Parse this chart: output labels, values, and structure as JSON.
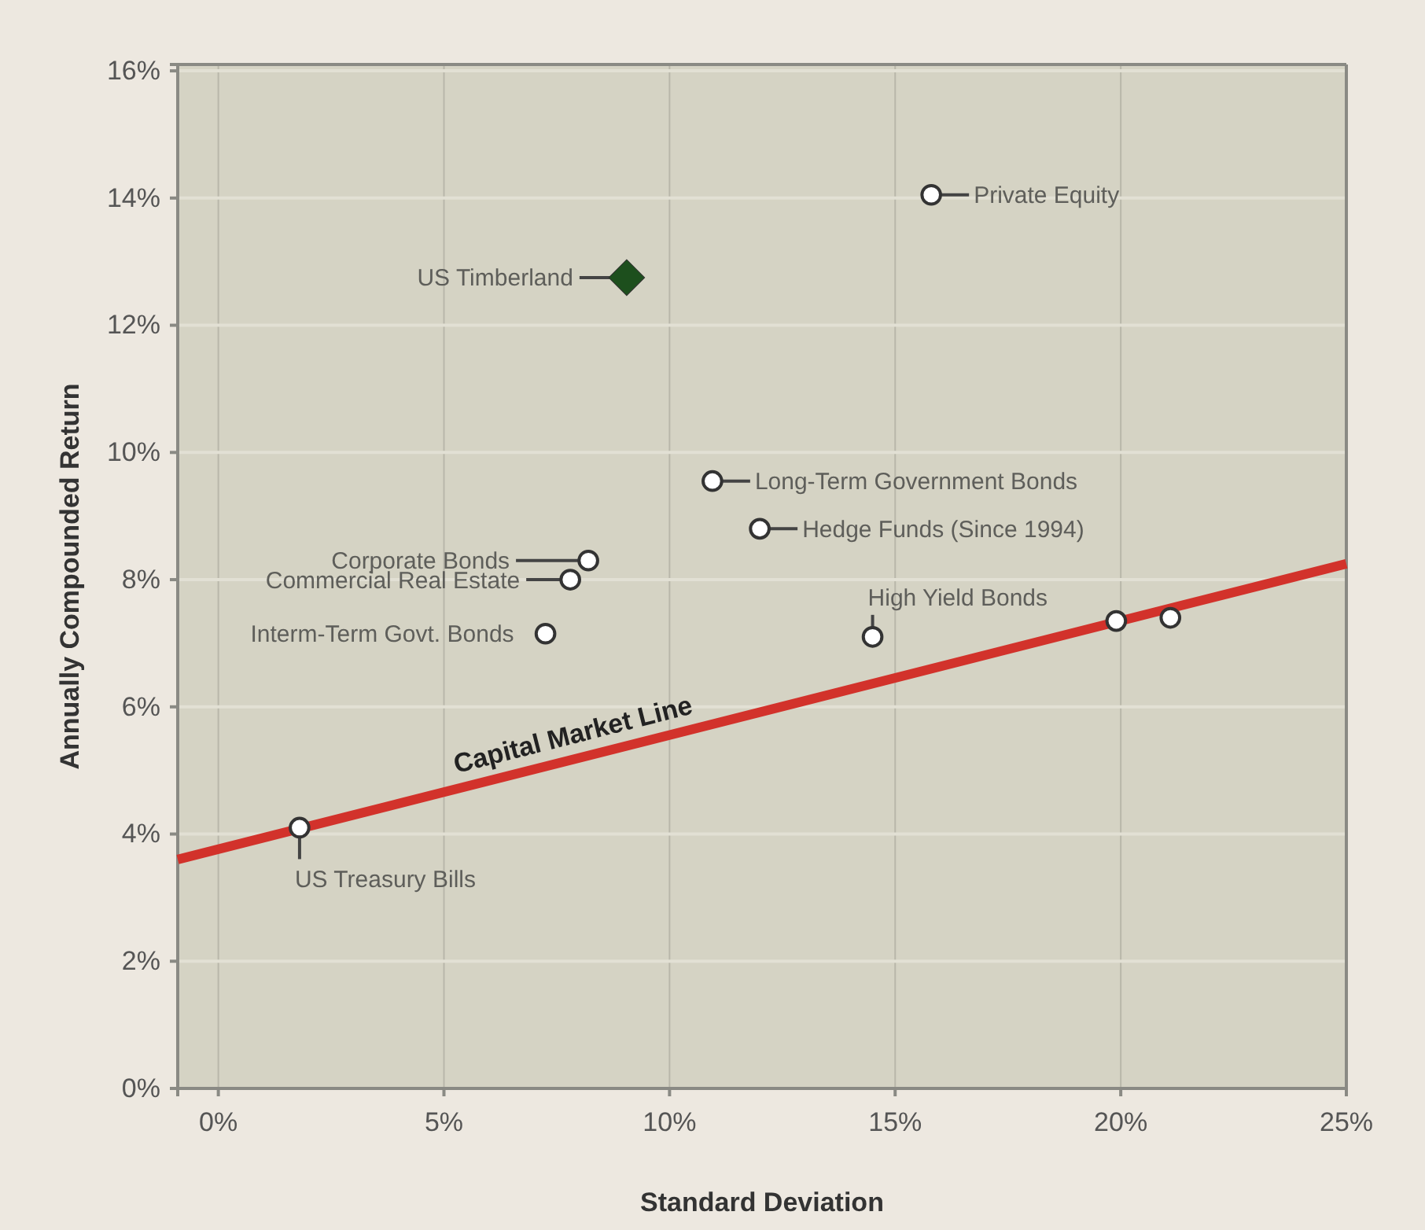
{
  "chart_data": {
    "type": "scatter",
    "xlabel": "Standard Deviation",
    "ylabel": "Annually Compounded Return",
    "xlim": [
      -0.9,
      25
    ],
    "ylim": [
      0,
      16.1
    ],
    "xticks": [
      {
        "value": 0,
        "label": "0%"
      },
      {
        "value": 5,
        "label": "5%"
      },
      {
        "value": 10,
        "label": "10%"
      },
      {
        "value": 15,
        "label": "15%"
      },
      {
        "value": 20,
        "label": "20%"
      },
      {
        "value": 25,
        "label": "25%"
      }
    ],
    "yticks": [
      {
        "value": 0,
        "label": "0%"
      },
      {
        "value": 2,
        "label": "2%"
      },
      {
        "value": 4,
        "label": "4%"
      },
      {
        "value": 6,
        "label": "6%"
      },
      {
        "value": 8,
        "label": "8%"
      },
      {
        "value": 10,
        "label": "10%"
      },
      {
        "value": 12,
        "label": "12%"
      },
      {
        "value": 14,
        "label": "14%"
      },
      {
        "value": 16,
        "label": "16%"
      }
    ],
    "grid": true,
    "series": [
      {
        "marker": "circle",
        "color": "#ffffff",
        "x": [
          1.8,
          7.25,
          8.2,
          7.8,
          10.95,
          12.0,
          14.5,
          19.9,
          21.1,
          15.8
        ],
        "values": [
          4.1,
          7.15,
          8.3,
          8.0,
          9.55,
          8.8,
          7.1,
          7.35,
          7.4,
          14.05
        ]
      },
      {
        "marker": "diamond",
        "color": "#1d4f1d",
        "x": [
          9.05
        ],
        "values": [
          12.75
        ]
      },
      {
        "type": "line",
        "name": "Capital Market Line",
        "color": "#d2322b",
        "x": [
          -0.9,
          25
        ],
        "values": [
          3.6,
          8.25
        ]
      }
    ],
    "annotations": [
      {
        "text": "US Treasury Bills",
        "x": 1.8,
        "y": 4.1
      },
      {
        "text": "Interm-Term Govt. Bonds",
        "x": 7.25,
        "y": 7.15
      },
      {
        "text": "Corporate Bonds",
        "x": 8.2,
        "y": 8.3
      },
      {
        "text": "Commercial Real Estate",
        "x": 7.8,
        "y": 8.0
      },
      {
        "text": "US Timberland",
        "x": 9.05,
        "y": 12.75
      },
      {
        "text": "Long-Term Government Bonds",
        "x": 10.95,
        "y": 9.55
      },
      {
        "text": "Hedge Funds (Since 1994)",
        "x": 12.0,
        "y": 8.8
      },
      {
        "text": "High Yield Bonds",
        "x": 14.5,
        "y": 7.1
      },
      {
        "text": "Private Equity",
        "x": 15.8,
        "y": 14.05
      }
    ]
  }
}
